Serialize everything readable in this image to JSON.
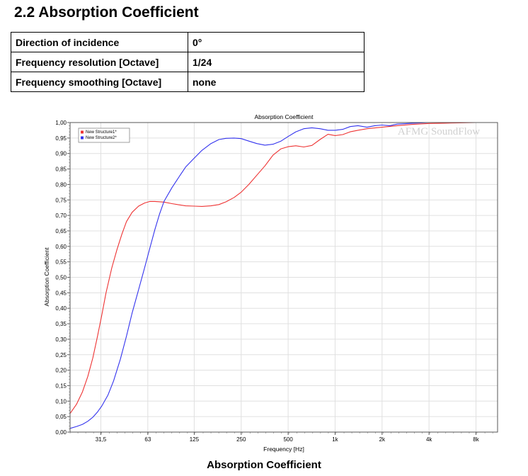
{
  "section_title": "2.2 Absorption Coefficient",
  "params": [
    {
      "label": "Direction of incidence",
      "value": "0°"
    },
    {
      "label": "Frequency resolution [Octave]",
      "value": "1/24"
    },
    {
      "label": "Frequency smoothing [Octave]",
      "value": "none"
    }
  ],
  "caption": "Absorption Coefficient",
  "chart_data": {
    "type": "line",
    "title": "Absorption Coefficient",
    "xlabel": "Frequency [Hz]",
    "ylabel": "Absorption Coefficient",
    "watermark": "AFMG SoundFlow",
    "x_scale": "log",
    "xlim": [
      20,
      11000
    ],
    "ylim": [
      0,
      1
    ],
    "x_ticks": [
      {
        "value": 31.5,
        "label": "31,5"
      },
      {
        "value": 63,
        "label": "63"
      },
      {
        "value": 125,
        "label": "125"
      },
      {
        "value": 250,
        "label": "250"
      },
      {
        "value": 500,
        "label": "500"
      },
      {
        "value": 1000,
        "label": "1k"
      },
      {
        "value": 2000,
        "label": "2k"
      },
      {
        "value": 4000,
        "label": "4k"
      },
      {
        "value": 8000,
        "label": "8k"
      }
    ],
    "y_ticks": [
      {
        "value": 0.0,
        "label": "0,00"
      },
      {
        "value": 0.05,
        "label": "0,05"
      },
      {
        "value": 0.1,
        "label": "0,10"
      },
      {
        "value": 0.15,
        "label": "0,15"
      },
      {
        "value": 0.2,
        "label": "0,20"
      },
      {
        "value": 0.25,
        "label": "0,25"
      },
      {
        "value": 0.3,
        "label": "0,30"
      },
      {
        "value": 0.35,
        "label": "0,35"
      },
      {
        "value": 0.4,
        "label": "0,40"
      },
      {
        "value": 0.45,
        "label": "0,45"
      },
      {
        "value": 0.5,
        "label": "0,50"
      },
      {
        "value": 0.55,
        "label": "0,55"
      },
      {
        "value": 0.6,
        "label": "0,60"
      },
      {
        "value": 0.65,
        "label": "0,65"
      },
      {
        "value": 0.7,
        "label": "0,70"
      },
      {
        "value": 0.75,
        "label": "0,75"
      },
      {
        "value": 0.8,
        "label": "0,80"
      },
      {
        "value": 0.85,
        "label": "0,85"
      },
      {
        "value": 0.9,
        "label": "0,90"
      },
      {
        "value": 0.95,
        "label": "0,95"
      },
      {
        "value": 1.0,
        "label": "1,00"
      }
    ],
    "grid": true,
    "legend_position": "top-left",
    "series": [
      {
        "name": "New Structure1*",
        "color": "#ee3333",
        "x": [
          20,
          22,
          24,
          26,
          28,
          30,
          32,
          34,
          37,
          40,
          43,
          46,
          50,
          55,
          60,
          65,
          70,
          80,
          90,
          100,
          110,
          125,
          140,
          160,
          180,
          200,
          225,
          250,
          280,
          315,
          355,
          400,
          450,
          500,
          560,
          630,
          710,
          800,
          900,
          1000,
          1120,
          1250,
          1400,
          1600,
          2000,
          2500,
          3150,
          4000,
          5000,
          6300,
          8000,
          10000,
          11000
        ],
        "y": [
          0.06,
          0.09,
          0.13,
          0.18,
          0.24,
          0.31,
          0.38,
          0.45,
          0.53,
          0.59,
          0.64,
          0.68,
          0.71,
          0.73,
          0.74,
          0.745,
          0.745,
          0.743,
          0.738,
          0.734,
          0.731,
          0.73,
          0.729,
          0.731,
          0.735,
          0.744,
          0.758,
          0.775,
          0.8,
          0.83,
          0.86,
          0.895,
          0.915,
          0.922,
          0.925,
          0.921,
          0.926,
          0.945,
          0.962,
          0.958,
          0.961,
          0.97,
          0.975,
          0.98,
          0.985,
          0.99,
          0.994,
          0.997,
          0.998,
          0.999,
          1.0,
          1.0,
          1.0
        ]
      },
      {
        "name": "New Structure2*",
        "color": "#3333ee",
        "x": [
          20,
          22,
          24,
          26,
          28,
          30,
          32,
          35,
          38,
          42,
          46,
          50,
          55,
          60,
          65,
          70,
          75,
          80,
          90,
          100,
          110,
          125,
          140,
          160,
          180,
          200,
          225,
          250,
          280,
          315,
          355,
          400,
          450,
          500,
          560,
          630,
          710,
          800,
          900,
          1000,
          1120,
          1250,
          1400,
          1600,
          1800,
          2000,
          2240,
          2500,
          3150,
          4000,
          5000,
          6300,
          8000,
          11000
        ],
        "y": [
          0.012,
          0.018,
          0.025,
          0.035,
          0.048,
          0.065,
          0.085,
          0.12,
          0.165,
          0.235,
          0.31,
          0.385,
          0.46,
          0.53,
          0.595,
          0.655,
          0.705,
          0.745,
          0.79,
          0.825,
          0.856,
          0.885,
          0.91,
          0.932,
          0.945,
          0.949,
          0.95,
          0.948,
          0.94,
          0.932,
          0.927,
          0.93,
          0.94,
          0.955,
          0.97,
          0.98,
          0.983,
          0.98,
          0.975,
          0.975,
          0.978,
          0.987,
          0.99,
          0.985,
          0.99,
          0.992,
          0.99,
          0.995,
          0.998,
          1.0,
          1.0,
          1.0,
          1.0,
          1.0
        ]
      }
    ]
  }
}
